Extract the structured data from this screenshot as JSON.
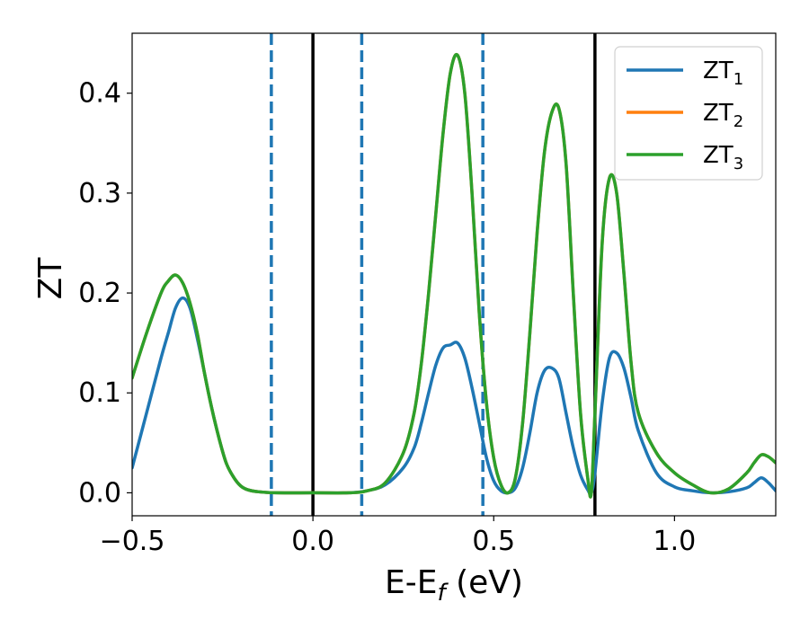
{
  "chart_data": {
    "type": "line",
    "xlabel": "E-E",
    "xlabel_sub": "f",
    "xlabel_unit": " (eV)",
    "ylabel": "ZT",
    "xlim": [
      -0.5,
      1.28
    ],
    "ylim": [
      -0.023,
      0.46
    ],
    "xticks": [
      {
        "value": -0.5,
        "label": "−0.5"
      },
      {
        "value": 0.0,
        "label": "0.0"
      },
      {
        "value": 0.5,
        "label": "0.5"
      },
      {
        "value": 1.0,
        "label": "1.0"
      }
    ],
    "yticks": [
      {
        "value": 0.0,
        "label": "0.0"
      },
      {
        "value": 0.1,
        "label": "0.1"
      },
      {
        "value": 0.2,
        "label": "0.2"
      },
      {
        "value": 0.3,
        "label": "0.3"
      },
      {
        "value": 0.4,
        "label": "0.4"
      }
    ],
    "grid": false,
    "legend_position": "top-right",
    "vertical_lines": [
      {
        "x": -0.115,
        "style": "dashed",
        "color": "#1f77b4"
      },
      {
        "x": 0.0,
        "style": "solid",
        "color": "#000000"
      },
      {
        "x": 0.135,
        "style": "dashed",
        "color": "#1f77b4"
      },
      {
        "x": 0.47,
        "style": "dashed",
        "color": "#1f77b4"
      },
      {
        "x": 0.78,
        "style": "solid",
        "color": "#000000"
      }
    ],
    "series": [
      {
        "name": "ZT",
        "name_sub": "1",
        "color": "#1f77b4",
        "x": [
          -0.5,
          -0.46,
          -0.42,
          -0.4,
          -0.38,
          -0.36,
          -0.34,
          -0.32,
          -0.3,
          -0.28,
          -0.26,
          -0.24,
          -0.22,
          -0.2,
          -0.18,
          -0.15,
          -0.1,
          0.0,
          0.1,
          0.15,
          0.2,
          0.25,
          0.28,
          0.3,
          0.32,
          0.34,
          0.36,
          0.38,
          0.4,
          0.42,
          0.44,
          0.46,
          0.48,
          0.5,
          0.52,
          0.54,
          0.56,
          0.58,
          0.6,
          0.62,
          0.64,
          0.66,
          0.68,
          0.7,
          0.72,
          0.74,
          0.76,
          0.77,
          0.78,
          0.8,
          0.82,
          0.84,
          0.86,
          0.88,
          0.9,
          0.95,
          1.0,
          1.05,
          1.1,
          1.15,
          1.2,
          1.22,
          1.24,
          1.26,
          1.28
        ],
        "y": [
          0.025,
          0.08,
          0.135,
          0.16,
          0.185,
          0.195,
          0.185,
          0.155,
          0.12,
          0.085,
          0.055,
          0.03,
          0.016,
          0.007,
          0.003,
          0.001,
          0.0,
          0.0,
          0.0,
          0.002,
          0.008,
          0.025,
          0.045,
          0.07,
          0.1,
          0.128,
          0.145,
          0.148,
          0.15,
          0.135,
          0.105,
          0.07,
          0.035,
          0.012,
          0.002,
          0.0,
          0.005,
          0.025,
          0.06,
          0.1,
          0.122,
          0.125,
          0.115,
          0.08,
          0.045,
          0.018,
          0.003,
          0.0,
          0.02,
          0.09,
          0.135,
          0.14,
          0.125,
          0.095,
          0.062,
          0.02,
          0.006,
          0.002,
          0.0,
          0.001,
          0.005,
          0.01,
          0.015,
          0.01,
          0.002
        ]
      },
      {
        "name": "ZT",
        "name_sub": "2",
        "color": "#ff7f0e",
        "x": [
          -0.5,
          -0.46,
          -0.42,
          -0.4,
          -0.38,
          -0.36,
          -0.34,
          -0.32,
          -0.3,
          -0.28,
          -0.26,
          -0.24,
          -0.22,
          -0.2,
          -0.18,
          -0.15,
          -0.1,
          0.0,
          0.1,
          0.15,
          0.2,
          0.25,
          0.28,
          0.3,
          0.32,
          0.34,
          0.36,
          0.38,
          0.4,
          0.42,
          0.44,
          0.46,
          0.48,
          0.5,
          0.52,
          0.54,
          0.56,
          0.58,
          0.6,
          0.62,
          0.64,
          0.66,
          0.68,
          0.7,
          0.72,
          0.74,
          0.76,
          0.77,
          0.78,
          0.8,
          0.82,
          0.84,
          0.86,
          0.88,
          0.9,
          0.95,
          1.0,
          1.05,
          1.1,
          1.15,
          1.2,
          1.22,
          1.24,
          1.26,
          1.28
        ],
        "y": [
          0.115,
          0.16,
          0.2,
          0.212,
          0.218,
          0.21,
          0.19,
          0.16,
          0.12,
          0.085,
          0.055,
          0.03,
          0.016,
          0.007,
          0.003,
          0.001,
          0.0,
          0.0,
          0.0,
          0.002,
          0.01,
          0.04,
          0.08,
          0.13,
          0.2,
          0.28,
          0.36,
          0.42,
          0.438,
          0.4,
          0.3,
          0.18,
          0.09,
          0.035,
          0.008,
          0.0,
          0.015,
          0.07,
          0.16,
          0.26,
          0.34,
          0.38,
          0.385,
          0.33,
          0.2,
          0.08,
          0.015,
          0.0,
          0.08,
          0.25,
          0.315,
          0.3,
          0.22,
          0.13,
          0.08,
          0.04,
          0.02,
          0.008,
          0.0,
          0.004,
          0.02,
          0.03,
          0.038,
          0.036,
          0.03
        ]
      },
      {
        "name": "ZT",
        "name_sub": "3",
        "color": "#2ca02c",
        "x": [
          -0.5,
          -0.46,
          -0.42,
          -0.4,
          -0.38,
          -0.36,
          -0.34,
          -0.32,
          -0.3,
          -0.28,
          -0.26,
          -0.24,
          -0.22,
          -0.2,
          -0.18,
          -0.15,
          -0.1,
          0.0,
          0.1,
          0.15,
          0.2,
          0.25,
          0.28,
          0.3,
          0.32,
          0.34,
          0.36,
          0.38,
          0.4,
          0.42,
          0.44,
          0.46,
          0.48,
          0.5,
          0.52,
          0.54,
          0.56,
          0.58,
          0.6,
          0.62,
          0.64,
          0.66,
          0.68,
          0.7,
          0.72,
          0.74,
          0.76,
          0.77,
          0.78,
          0.8,
          0.82,
          0.84,
          0.86,
          0.88,
          0.9,
          0.95,
          1.0,
          1.05,
          1.1,
          1.15,
          1.2,
          1.22,
          1.24,
          1.26,
          1.28
        ],
        "y": [
          0.115,
          0.16,
          0.2,
          0.212,
          0.218,
          0.21,
          0.19,
          0.16,
          0.12,
          0.085,
          0.055,
          0.03,
          0.016,
          0.007,
          0.003,
          0.001,
          0.0,
          0.0,
          0.0,
          0.002,
          0.01,
          0.04,
          0.08,
          0.13,
          0.2,
          0.28,
          0.36,
          0.42,
          0.438,
          0.4,
          0.3,
          0.18,
          0.09,
          0.035,
          0.008,
          0.0,
          0.015,
          0.07,
          0.16,
          0.26,
          0.34,
          0.38,
          0.385,
          0.33,
          0.2,
          0.08,
          0.015,
          0.0,
          0.08,
          0.25,
          0.315,
          0.3,
          0.22,
          0.13,
          0.08,
          0.04,
          0.02,
          0.008,
          0.0,
          0.004,
          0.02,
          0.03,
          0.038,
          0.036,
          0.03
        ]
      }
    ]
  }
}
